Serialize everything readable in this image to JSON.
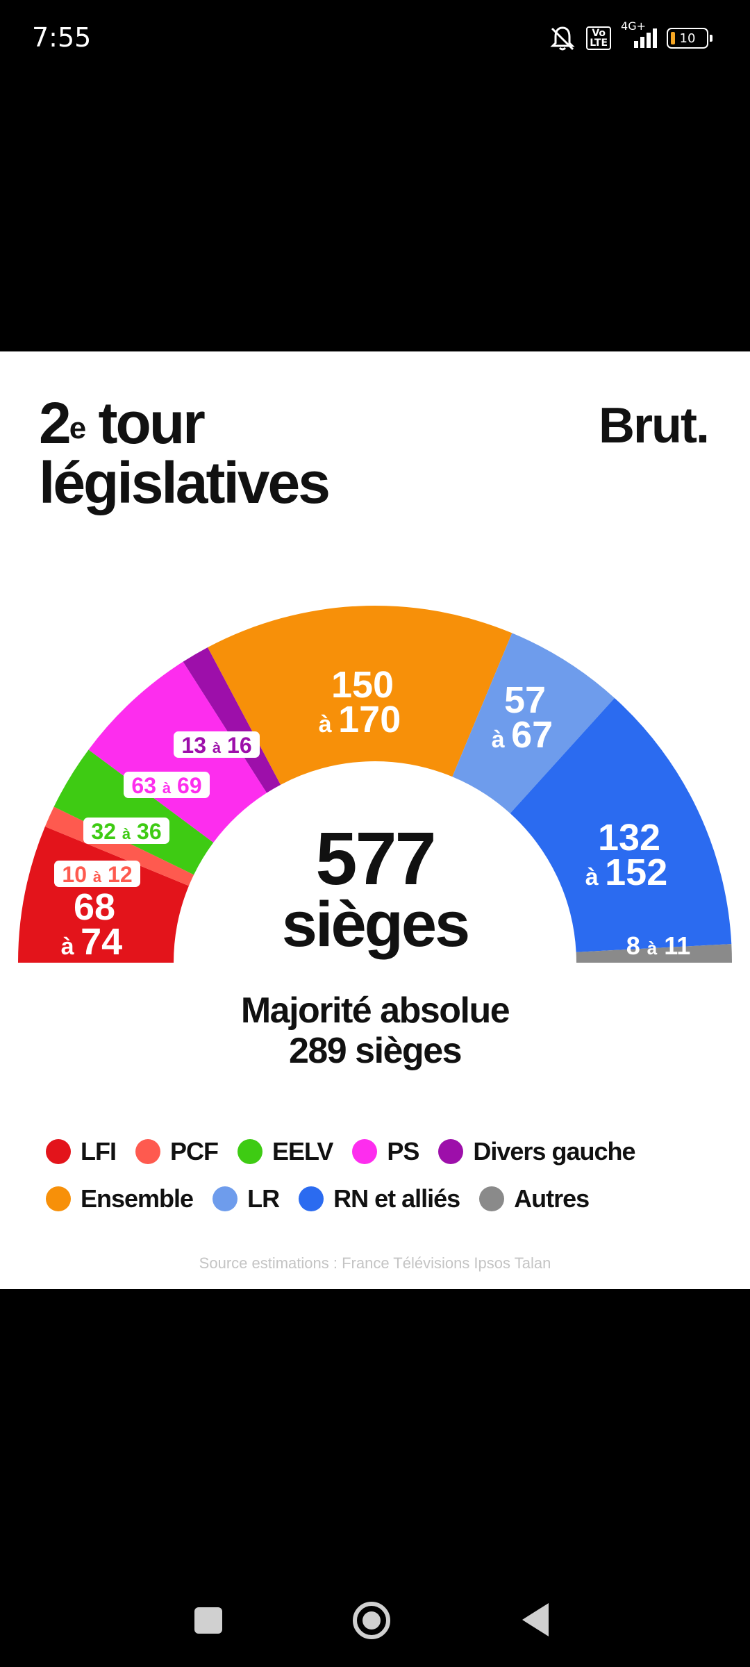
{
  "status_bar": {
    "time": "7:55",
    "volte_label": "Vo\nLTE",
    "network_label": "4G+",
    "battery_level": "10",
    "icons": [
      "bell-off-icon",
      "volte-icon",
      "signal-icon",
      "battery-icon"
    ]
  },
  "card": {
    "title_line1_number": "2",
    "title_line1_sup": "e",
    "title_line1_rest": " tour",
    "title_line2": "législatives",
    "brand": "Brut.",
    "total_number": "577",
    "total_unit": "sièges",
    "majority_line1": "Majorité absolue",
    "majority_line2": "289 sièges",
    "source": "Source estimations : France Télévisions Ipsos Talan"
  },
  "chart_data": {
    "type": "pie",
    "subtype": "hemicycle",
    "total_seats": 577,
    "majority": 289,
    "series": [
      {
        "name": "LFI",
        "low": 68,
        "high": 74,
        "color": "#e3141b",
        "label": "68 à 74"
      },
      {
        "name": "PCF",
        "low": 10,
        "high": 12,
        "color": "#fe5a4f",
        "label": "10 à 12"
      },
      {
        "name": "EELV",
        "low": 32,
        "high": 36,
        "color": "#3ecb13",
        "label": "32 à 36"
      },
      {
        "name": "PS",
        "low": 63,
        "high": 69,
        "color": "#fd2dee",
        "label": "63 à 69"
      },
      {
        "name": "Divers gauche",
        "low": 13,
        "high": 16,
        "color": "#9d0faa",
        "label": "13 à 16"
      },
      {
        "name": "Ensemble",
        "low": 150,
        "high": 170,
        "color": "#f79009",
        "label": "150 à 170"
      },
      {
        "name": "LR",
        "low": 57,
        "high": 67,
        "color": "#6e9cec",
        "label": "57 à 67"
      },
      {
        "name": "RN et alliés",
        "low": 132,
        "high": 152,
        "color": "#2b6bf0",
        "label": "132 à 152"
      },
      {
        "name": "Autres",
        "low": 8,
        "high": 11,
        "color": "#8a8a8a",
        "label": "8 à 11"
      }
    ],
    "legend_rows": [
      [
        "LFI",
        "PCF",
        "EELV",
        "PS",
        "Divers gauche"
      ],
      [
        "Ensemble",
        "LR",
        "RN et alliés",
        "Autres"
      ]
    ]
  }
}
